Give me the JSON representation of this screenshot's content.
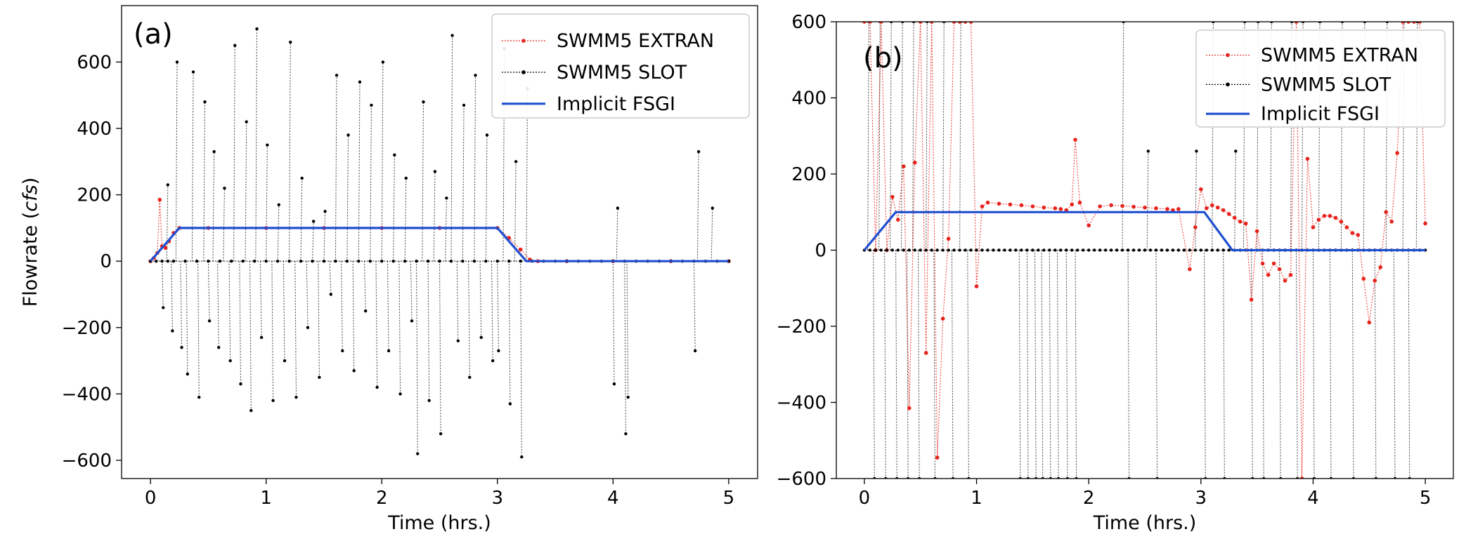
{
  "chart_data": [
    {
      "type": "line",
      "panel_label": "(a)",
      "xlabel": "Time (hrs.)",
      "ylabel_prefix": "Flowrate (",
      "ylabel_unit": "cfs",
      "ylabel_suffix": ")",
      "xlim": [
        -0.25,
        5.25
      ],
      "ylim": [
        -655,
        770
      ],
      "xticks": [
        0,
        1,
        2,
        3,
        4,
        5
      ],
      "xtick_labels": [
        "0",
        "1",
        "2",
        "3",
        "4",
        "5"
      ],
      "yticks": [
        -600,
        -400,
        -200,
        0,
        200,
        400,
        600
      ],
      "ytick_labels": [
        "−600",
        "−400",
        "−200",
        "0",
        "200",
        "400",
        "600"
      ],
      "legend_position": "top-right",
      "legend": [
        "SWMM5 EXTRAN",
        "SWMM5 SLOT",
        "Implicit FSGI"
      ],
      "series": [
        {
          "name": "SWMM5 EXTRAN",
          "color": "#e8231c",
          "style": "dotted-markers",
          "x": [
            0,
            0.03,
            0.06,
            0.08,
            0.1,
            0.13,
            0.16,
            0.2,
            0.25,
            0.5,
            1.0,
            1.5,
            2.0,
            2.5,
            3.0,
            3.1,
            3.2,
            3.28,
            3.35,
            3.6,
            4.0,
            4.5,
            5.0
          ],
          "y": [
            0,
            10,
            25,
            185,
            45,
            40,
            60,
            85,
            100,
            100,
            100,
            100,
            100,
            100,
            100,
            70,
            35,
            5,
            0,
            0,
            0,
            0,
            0
          ]
        },
        {
          "name": "SWMM5 SLOT",
          "color": "#000000",
          "style": "dotted-markers",
          "x": [
            0.0,
            0.05,
            0.1,
            0.15,
            0.2,
            0.3,
            0.4,
            0.5,
            0.6,
            0.7,
            0.8,
            0.9,
            1.0,
            1.1,
            1.2,
            1.3,
            1.4,
            1.5,
            1.6,
            1.7,
            1.8,
            1.9,
            2.0,
            2.1,
            2.2,
            2.3,
            2.4,
            2.5,
            2.6,
            2.7,
            2.8,
            2.9,
            3.0,
            3.1,
            3.2,
            3.3,
            3.4,
            3.5,
            3.6,
            3.7,
            3.8,
            3.9,
            4.0,
            4.1,
            4.2,
            4.3,
            4.4,
            4.5,
            4.6,
            4.7,
            4.8,
            4.9,
            5.0
          ],
          "y": [
            0,
            0,
            0,
            0,
            0,
            0,
            0,
            0,
            0,
            0,
            0,
            0,
            0,
            0,
            0,
            0,
            0,
            0,
            0,
            0,
            0,
            0,
            0,
            0,
            0,
            0,
            0,
            0,
            0,
            0,
            0,
            0,
            0,
            0,
            0,
            0,
            0,
            0,
            0,
            0,
            0,
            0,
            0,
            0,
            0,
            0,
            0,
            0,
            0,
            0,
            0,
            0,
            0
          ],
          "spikes_x": [
            0.1,
            0.14,
            0.18,
            0.22,
            0.26,
            0.31,
            0.36,
            0.41,
            0.46,
            0.5,
            0.54,
            0.58,
            0.63,
            0.68,
            0.72,
            0.77,
            0.82,
            0.86,
            0.91,
            0.95,
            1.0,
            1.05,
            1.1,
            1.15,
            1.2,
            1.25,
            1.3,
            1.35,
            1.4,
            1.45,
            1.5,
            1.55,
            1.6,
            1.65,
            1.7,
            1.75,
            1.8,
            1.85,
            1.9,
            1.95,
            2.0,
            2.05,
            2.1,
            2.15,
            2.2,
            2.25,
            2.3,
            2.35,
            2.4,
            2.45,
            2.5,
            2.55,
            2.6,
            2.65,
            2.7,
            2.75,
            2.8,
            2.85,
            2.9,
            2.95,
            3.0,
            3.05,
            3.1,
            3.15,
            3.2,
            3.25,
            4.0,
            4.03,
            4.1,
            4.12,
            4.7,
            4.73,
            4.85
          ],
          "spikes_y": [
            -140,
            230,
            -210,
            600,
            -260,
            -340,
            570,
            -410,
            480,
            -180,
            330,
            -260,
            220,
            -300,
            650,
            -370,
            420,
            -450,
            700,
            -230,
            350,
            -420,
            170,
            -300,
            660,
            -410,
            250,
            -200,
            120,
            -350,
            150,
            -100,
            560,
            -270,
            380,
            -330,
            540,
            -150,
            470,
            -380,
            600,
            -270,
            320,
            -400,
            250,
            -180,
            -580,
            480,
            -420,
            270,
            -520,
            190,
            680,
            -240,
            470,
            -350,
            560,
            -230,
            380,
            -300,
            -270,
            640,
            -430,
            300,
            -590,
            520,
            -370,
            160,
            -520,
            -410,
            -270,
            330,
            160
          ]
        },
        {
          "name": "Implicit FSGI",
          "color": "#1f4fd1",
          "style": "solid",
          "x": [
            0,
            0.25,
            3.0,
            3.25,
            5.0
          ],
          "y": [
            0,
            100,
            100,
            0,
            0
          ]
        }
      ]
    },
    {
      "type": "line",
      "panel_label": "(b)",
      "xlabel": "Time (hrs.)",
      "xlim": [
        -0.25,
        5.25
      ],
      "ylim": [
        -600,
        600
      ],
      "xticks": [
        0,
        1,
        2,
        3,
        4,
        5
      ],
      "xtick_labels": [
        "0",
        "1",
        "2",
        "3",
        "4",
        "5"
      ],
      "yticks": [
        -600,
        -400,
        -200,
        0,
        200,
        400,
        600
      ],
      "ytick_labels": [
        "−600",
        "−400",
        "−200",
        "0",
        "200",
        "400",
        "600"
      ],
      "legend_position": "top-right",
      "legend": [
        "SWMM5 EXTRAN",
        "SWMM5 SLOT",
        "Implicit FSGI"
      ],
      "series": [
        {
          "name": "SWMM5 EXTRAN",
          "color": "#e8231c",
          "style": "dotted-markers",
          "x": [
            0.0,
            0.05,
            0.1,
            0.15,
            0.2,
            0.25,
            0.3,
            0.35,
            0.4,
            0.45,
            0.5,
            0.55,
            0.6,
            0.65,
            0.7,
            0.75,
            0.8,
            0.85,
            0.9,
            0.95,
            1.0,
            1.05,
            1.1,
            1.2,
            1.3,
            1.4,
            1.5,
            1.6,
            1.7,
            1.75,
            1.8,
            1.85,
            1.88,
            1.92,
            2.0,
            2.1,
            2.2,
            2.3,
            2.4,
            2.5,
            2.6,
            2.7,
            2.75,
            2.8,
            2.9,
            2.95,
            3.0,
            3.05,
            3.1,
            3.15,
            3.2,
            3.25,
            3.3,
            3.35,
            3.4,
            3.45,
            3.5,
            3.55,
            3.6,
            3.65,
            3.7,
            3.75,
            3.8,
            3.85,
            3.9,
            3.95,
            4.0,
            4.05,
            4.1,
            4.15,
            4.2,
            4.25,
            4.3,
            4.35,
            4.4,
            4.45,
            4.5,
            4.55,
            4.6,
            4.65,
            4.7,
            4.75,
            4.8,
            4.85,
            4.9,
            4.95,
            5.0
          ],
          "y": [
            600,
            600,
            0,
            600,
            0,
            140,
            80,
            220,
            -415,
            230,
            600,
            -270,
            600,
            -545,
            -180,
            30,
            600,
            600,
            600,
            600,
            -95,
            115,
            125,
            122,
            120,
            118,
            115,
            112,
            110,
            108,
            105,
            120,
            290,
            125,
            65,
            115,
            118,
            116,
            114,
            112,
            110,
            108,
            105,
            108,
            -50,
            60,
            160,
            110,
            118,
            112,
            105,
            95,
            85,
            75,
            70,
            -130,
            50,
            -35,
            -65,
            -35,
            -50,
            -80,
            -65,
            600,
            -600,
            240,
            60,
            80,
            90,
            90,
            85,
            75,
            60,
            45,
            40,
            -75,
            -190,
            -80,
            -45,
            100,
            75,
            255,
            600,
            600,
            600,
            600,
            70
          ]
        },
        {
          "name": "SWMM5 SLOT",
          "color": "#000000",
          "style": "dotted-markers",
          "x": [
            0.0,
            0.05,
            0.1,
            0.15,
            0.2,
            0.25,
            0.3,
            0.35,
            0.4,
            0.45,
            0.5,
            0.55,
            0.6,
            0.65,
            0.7,
            0.75,
            0.8,
            0.85,
            0.9,
            0.95,
            1.0,
            1.05,
            1.1,
            1.15,
            1.2,
            1.25,
            1.3,
            1.35,
            1.4,
            1.45,
            1.5,
            1.55,
            1.6,
            1.65,
            1.7,
            1.75,
            1.8,
            1.85,
            1.9,
            1.95,
            2.0,
            2.05,
            2.1,
            2.15,
            2.2,
            2.25,
            2.3,
            2.35,
            2.4,
            2.45,
            2.5,
            2.55,
            2.6,
            2.65,
            2.7,
            2.75,
            2.8,
            2.85,
            2.9,
            2.95,
            3.0,
            3.05,
            3.1,
            3.15,
            3.2,
            3.25,
            3.3,
            3.35,
            3.4,
            3.45,
            3.5,
            3.55,
            3.6,
            3.65,
            3.7,
            3.75,
            3.8,
            3.85,
            3.9,
            3.95,
            4.0,
            4.05,
            4.1,
            4.15,
            4.2,
            4.25,
            4.3,
            4.35,
            4.4,
            4.45,
            4.5,
            4.55,
            4.6,
            4.65,
            4.7,
            4.75,
            4.8,
            4.85,
            4.9,
            4.95,
            5.0
          ],
          "y": [
            0,
            0,
            0,
            0,
            0,
            0,
            0,
            0,
            0,
            0,
            0,
            0,
            0,
            0,
            0,
            0,
            0,
            0,
            0,
            0,
            0,
            0,
            0,
            0,
            0,
            0,
            0,
            0,
            0,
            0,
            0,
            0,
            0,
            0,
            0,
            0,
            0,
            0,
            0,
            0,
            0,
            0,
            0,
            0,
            0,
            0,
            0,
            0,
            0,
            0,
            0,
            0,
            0,
            0,
            0,
            0,
            0,
            0,
            0,
            0,
            0,
            0,
            0,
            0,
            0,
            0,
            0,
            0,
            0,
            0,
            0,
            0,
            0,
            0,
            0,
            0,
            0,
            0,
            0,
            0,
            0,
            0,
            0,
            0,
            0,
            0,
            0,
            0,
            0,
            0,
            0,
            0,
            0,
            0,
            0,
            0,
            0,
            0,
            0,
            0,
            0
          ],
          "spikes_x": [
            0.03,
            0.08,
            0.13,
            0.18,
            0.23,
            0.28,
            0.33,
            0.38,
            0.43,
            0.48,
            0.55,
            0.62,
            0.7,
            0.78,
            0.85,
            0.92,
            1.38,
            1.45,
            1.52,
            1.58,
            1.65,
            1.72,
            1.8,
            1.88,
            2.3,
            2.35,
            2.52,
            2.6,
            2.95,
            3.03,
            3.1,
            3.2,
            3.3,
            3.38,
            3.45,
            3.5,
            3.55,
            3.62,
            3.7,
            3.8,
            3.85,
            3.9,
            4.0,
            4.05,
            4.15,
            4.25,
            4.35,
            4.45,
            4.55,
            4.65,
            4.72,
            4.8,
            4.85,
            4.92
          ],
          "spikes_y": [
            600,
            -600,
            600,
            -600,
            600,
            -600,
            600,
            -600,
            600,
            -600,
            600,
            -600,
            600,
            -600,
            600,
            -600,
            -600,
            -600,
            -600,
            -600,
            -600,
            -600,
            -600,
            -600,
            600,
            -600,
            260,
            -600,
            260,
            -600,
            600,
            -600,
            260,
            600,
            -600,
            600,
            -600,
            600,
            -600,
            600,
            -600,
            600,
            -600,
            600,
            -600,
            600,
            -600,
            600,
            -600,
            600,
            -600,
            600,
            -600,
            600
          ]
        },
        {
          "name": "Implicit FSGI",
          "color": "#1f4fd1",
          "style": "solid",
          "x": [
            0,
            0.28,
            3.03,
            3.28,
            5.0
          ],
          "y": [
            0,
            100,
            100,
            0,
            0
          ]
        }
      ]
    }
  ]
}
